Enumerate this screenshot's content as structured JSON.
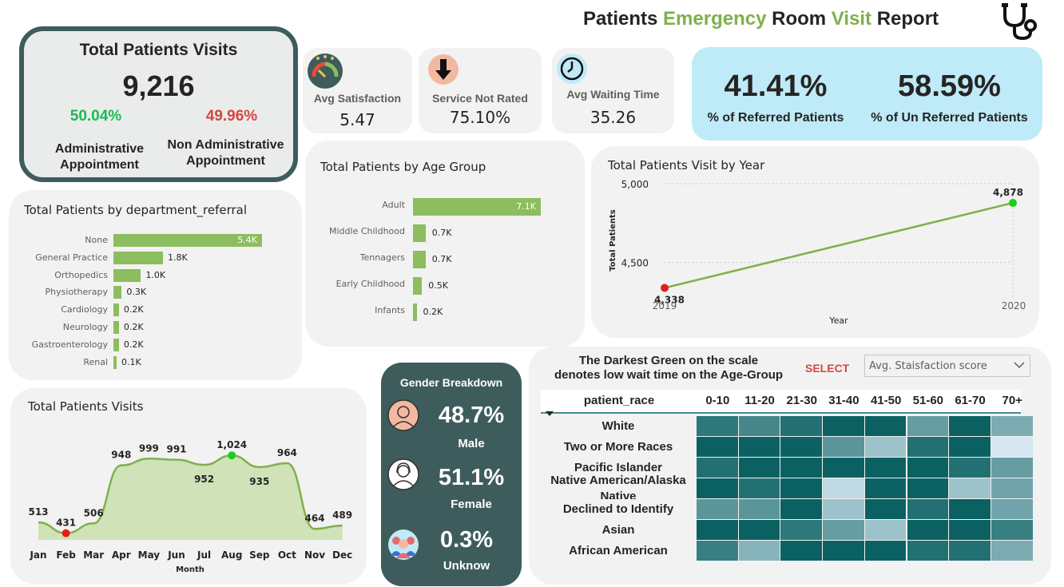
{
  "report": {
    "title_parts": [
      "Patients",
      "Emergency",
      "Room",
      "Visit",
      "Report"
    ],
    "title_colors": [
      "#252423",
      "#7fb04d",
      "#252423",
      "#7fb04d",
      "#252423"
    ],
    "logo_icon": "stethoscope-icon"
  },
  "total_visits": {
    "title": "Total Patients Visits",
    "value": "9,216",
    "admin_pct": "50.04%",
    "nonadmin_pct": "49.96%",
    "admin_label_1": "Administrative",
    "admin_label_2": "Appointment",
    "nonadmin_label_1": "Non Administrative",
    "nonadmin_label_2": "Appointment",
    "admin_color": "#1db954",
    "nonadmin_color": "#d64541"
  },
  "kpis": {
    "satisfaction": {
      "label": "Avg Satisfaction",
      "value": "5.47",
      "icon": "gauge-icon"
    },
    "not_rated": {
      "label": "Service Not Rated",
      "value": "75.10%",
      "icon": "down-arrow-icon"
    },
    "waiting": {
      "label": "Avg Waiting Time",
      "value": "35.26",
      "icon": "clock-icon"
    }
  },
  "referral": {
    "referred_value": "41.41%",
    "referred_label": "% of Referred Patients",
    "unreferred_value": "58.59%",
    "unreferred_label": "% of Un Referred Patients",
    "bg_color": "#bfeaf7"
  },
  "age_group": {
    "title": "Total Patients by Age Group",
    "chart_data": {
      "type": "bar",
      "categories": [
        "Adult",
        "Middle Childhood",
        "Tennagers",
        "Early Childhood",
        "Infants"
      ],
      "values": [
        7.1,
        0.7,
        0.7,
        0.5,
        0.2
      ],
      "labels": [
        "7.1K",
        "0.7K",
        "0.7K",
        "0.5K",
        "0.2K"
      ]
    }
  },
  "year_chart": {
    "title": "Total Patients Visit by Year",
    "chart_data": {
      "type": "line",
      "x": [
        "2019",
        "2020"
      ],
      "values": [
        4338,
        4878
      ],
      "labels": [
        "4,338",
        "4,878"
      ],
      "xlabel": "Year",
      "ylabel": "Total Patients",
      "yticks": [
        "5,000",
        "4,500"
      ],
      "ylim": [
        4300,
        5000
      ]
    }
  },
  "department": {
    "title": "Total Patients by department_referral",
    "chart_data": {
      "type": "bar",
      "categories": [
        "None",
        "General Practice",
        "Orthopedics",
        "Physiotherapy",
        "Cardiology",
        "Neurology",
        "Gastroenterology",
        "Renal"
      ],
      "values": [
        5.4,
        1.8,
        1.0,
        0.3,
        0.2,
        0.2,
        0.2,
        0.1
      ],
      "labels": [
        "5.4K",
        "1.8K",
        "1.0K",
        "0.3K",
        "0.2K",
        "0.2K",
        "0.2K",
        "0.1K"
      ]
    }
  },
  "monthly": {
    "title": "Total Patients Visits",
    "chart_data": {
      "type": "area",
      "categories": [
        "Jan",
        "Feb",
        "Mar",
        "Apr",
        "May",
        "Jun",
        "Jul",
        "Aug",
        "Sep",
        "Oct",
        "Nov",
        "Dec"
      ],
      "values": [
        513,
        431,
        506,
        948,
        999,
        991,
        952,
        1024,
        935,
        964,
        464,
        489
      ],
      "labels": [
        "513",
        "431",
        "506",
        "948",
        "999",
        "991",
        "952",
        "1,024",
        "935",
        "964",
        "464",
        "489"
      ],
      "xlabel": "Month",
      "ylim": [
        380,
        1080
      ]
    }
  },
  "gender": {
    "title": "Gender Breakdown",
    "items": [
      {
        "value": "48.7%",
        "label": "Male",
        "icon": "male-avatar-icon"
      },
      {
        "value": "51.1%",
        "label": "Female",
        "icon": "female-avatar-icon"
      },
      {
        "value": "0.3%",
        "label": "Unknow",
        "icon": "group-icon"
      }
    ]
  },
  "heatmap": {
    "note_line1": "The Darkest Green on the scale",
    "note_line2": "denotes low wait time on the Age-Group",
    "select_label": "SELECT",
    "dropdown_value": "Avg. Staisfaction score",
    "header_label": "patient_race",
    "columns": [
      "0-10",
      "11-20",
      "21-30",
      "31-40",
      "41-50",
      "51-60",
      "61-70",
      "70+"
    ],
    "rows": [
      {
        "label": "White",
        "levels": [
          0.8,
          0.7,
          0.85,
          0.95,
          0.95,
          0.55,
          0.95,
          0.45
        ]
      },
      {
        "label": "Two or More Races",
        "levels": [
          0.95,
          0.95,
          0.95,
          0.6,
          0.3,
          0.85,
          0.95,
          0.05
        ]
      },
      {
        "label": "Pacific Islander",
        "levels": [
          0.85,
          0.95,
          0.95,
          0.95,
          0.95,
          0.95,
          0.85,
          0.55
        ]
      },
      {
        "label": "Native American/Alaska Native",
        "levels": [
          0.95,
          0.85,
          0.95,
          0.15,
          0.95,
          0.95,
          0.3,
          0.5
        ]
      },
      {
        "label": "Declined to Identify",
        "levels": [
          0.6,
          0.6,
          0.95,
          0.3,
          0.95,
          0.85,
          0.95,
          0.5
        ]
      },
      {
        "label": "Asian",
        "levels": [
          0.95,
          0.95,
          0.8,
          0.55,
          0.3,
          0.95,
          0.95,
          0.75
        ]
      },
      {
        "label": "African American",
        "levels": [
          0.75,
          0.4,
          0.95,
          0.95,
          0.95,
          0.85,
          0.85,
          0.45
        ]
      }
    ]
  }
}
